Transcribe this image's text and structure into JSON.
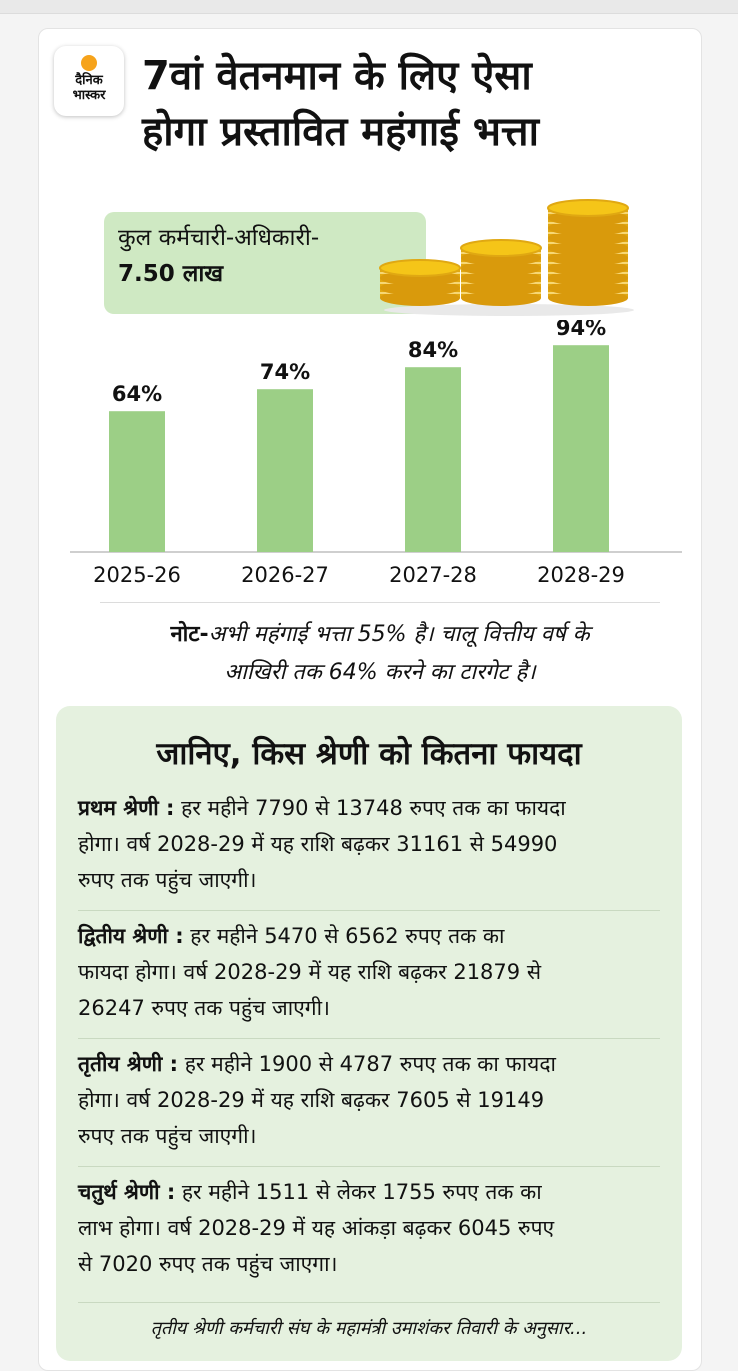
{
  "brand": {
    "line1": "दैनिक",
    "line2": "भास्कर"
  },
  "title": {
    "line1": "7वां वेतनमान के लिए ऐसा",
    "line2": "होगा प्रस्तावित महंगाई भत्ता"
  },
  "employees": {
    "label": "कुल कर्मचारी-अधिकारी-",
    "value": "7.50 लाख"
  },
  "chart_data": {
    "type": "bar",
    "title": "",
    "xlabel": "",
    "ylabel": "",
    "categories": [
      "2025-26",
      "2026-27",
      "2027-28",
      "2028-29"
    ],
    "values": [
      64,
      74,
      84,
      94
    ],
    "data_labels": [
      "64%",
      "74%",
      "84%",
      "94%"
    ],
    "ylim": [
      0,
      100
    ],
    "grid": false,
    "bar_color": "#9ccf86"
  },
  "note": {
    "label": "नोट-",
    "text": "अभी महंगाई भत्ता 55% है। चालू वित्तीय वर्ष के",
    "text2": "आखिरी तक 64% करने का टारगेट है।"
  },
  "benefits": {
    "heading": "जानिए, किस श्रेणी को कितना फायदा",
    "items": [
      {
        "label": "प्रथम श्रेणी :",
        "line1": " हर महीने 7790 से 13748 रुपए तक का फायदा",
        "line2": "होगा। वर्ष 2028-29 में यह राशि बढ़कर 31161 से 54990",
        "line3": "रुपए तक पहुंच जाएगी।"
      },
      {
        "label": "द्वितीय श्रेणी :",
        "line1": " हर महीने 5470 से 6562 रुपए तक का",
        "line2": "फायदा होगा। वर्ष 2028-29 में यह राशि बढ़कर 21879 से",
        "line3": "26247 रुपए तक पहुंच जाएगी।"
      },
      {
        "label": "तृतीय श्रेणी :",
        "line1": " हर महीने 1900 से 4787 रुपए तक का फायदा",
        "line2": "होगा। वर्ष 2028-29 में यह राशि बढ़कर 7605 से 19149",
        "line3": "रुपए तक पहुंच जाएगी।"
      },
      {
        "label": "चतुर्थ श्रेणी :",
        "line1": " हर महीने 1511 से लेकर 1755 रुपए तक का",
        "line2": "लाभ होगा। वर्ष 2028-29 में यह आंकड़ा बढ़कर 6045 रुपए",
        "line3": "से 7020 रुपए तक पहुंच जाएगा।"
      }
    ],
    "source": "तृतीय श्रेणी कर्मचारी संघ के महामंत्री उमाशंकर तिवारी के अनुसार..."
  },
  "colors": {
    "accent_green": "#cfe9c3",
    "panel_green": "#e5f1df",
    "bar_green": "#9ccf86",
    "coin_gold": "#f5c518"
  }
}
